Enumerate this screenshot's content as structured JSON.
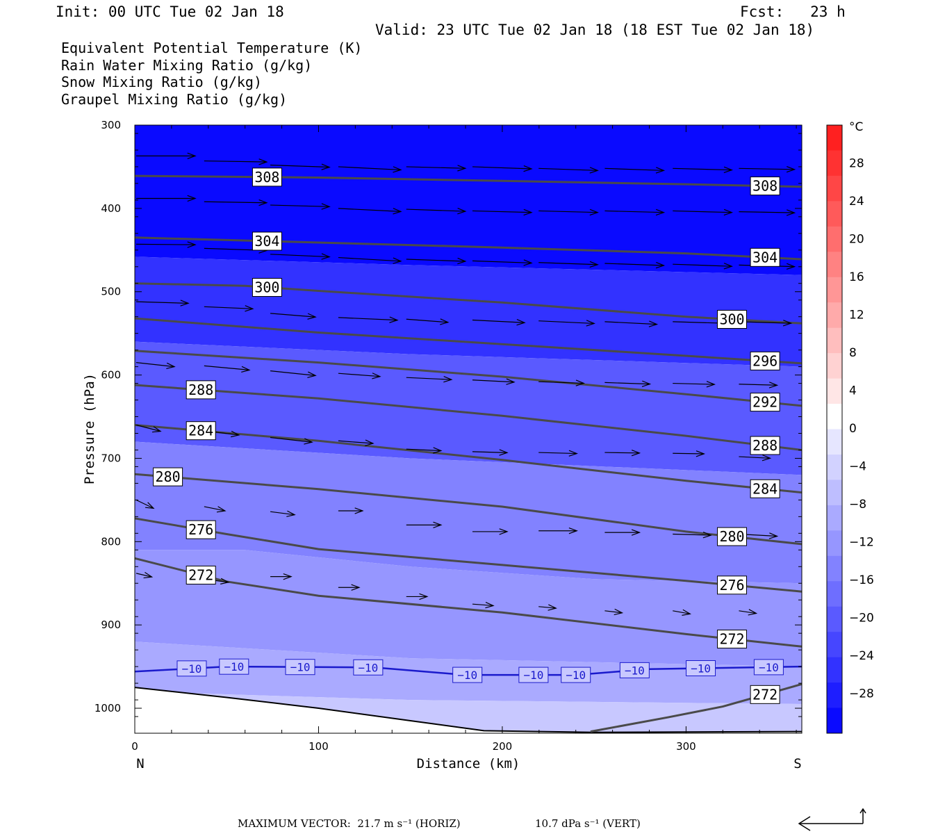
{
  "header": {
    "init": "Init: 00 UTC Tue 02 Jan 18",
    "fcst": "Fcst:   23 h",
    "valid": "Valid: 23 UTC Tue 02 Jan 18 (18 EST Tue 02 Jan 18)"
  },
  "legend": [
    {
      "text": "Equivalent Potential Temperature (K)",
      "color": "#4a4a4a"
    },
    {
      "text": "Rain Water Mixing Ratio (g/kg)",
      "color": "#0a7a0a"
    },
    {
      "text": "Snow Mixing Ratio (g/kg)",
      "color": "#f08c5a"
    },
    {
      "text": "Graupel Mixing Ratio (g/kg)",
      "color": "#e070e0"
    }
  ],
  "footer": {
    "max_vector": "MAXIMUM VECTOR:  21.7 m s⁻¹ (HORIZ)",
    "vert": "10.7 dPa s⁻¹ (VERT)"
  },
  "chart_data": {
    "type": "contour-cross-section",
    "xlabel": "Distance (km)",
    "ylabel": "Pressure (hPa)",
    "x_left_label": "N",
    "x_right_label": "S",
    "xlim": [
      0,
      363
    ],
    "ylim": [
      1030,
      300
    ],
    "x_ticks": [
      0,
      100,
      200,
      300
    ],
    "y_ticks": [
      300,
      400,
      500,
      600,
      700,
      800,
      900,
      1000
    ],
    "colorbar": {
      "unit": "°C",
      "labels": [
        "28",
        "24",
        "20",
        "16",
        "12",
        "8",
        "4",
        "0",
        "−4",
        "−8",
        "−12",
        "−16",
        "−20",
        "−24",
        "−28"
      ],
      "colors": [
        "#ff2020",
        "#ff3232",
        "#ff4646",
        "#ff5a5a",
        "#ff6e6e",
        "#ff8282",
        "#ff9696",
        "#ffaaaa",
        "#ffbebe",
        "#ffd2d2",
        "#ffe6e6",
        "#ffffff",
        "#e6e6ff",
        "#d2d2ff",
        "#bebeff",
        "#aaaaff",
        "#9696ff",
        "#8282ff",
        "#6e6eff",
        "#5a5aff",
        "#4646ff",
        "#3232ff",
        "#1e1eff",
        "#0a0aff"
      ]
    },
    "theta_e_contours": [
      {
        "value": 308,
        "labels": [
          "308",
          "308"
        ],
        "points": [
          [
            0,
            361
          ],
          [
            100,
            363
          ],
          [
            200,
            367
          ],
          [
            300,
            371
          ],
          [
            363,
            374
          ]
        ]
      },
      {
        "value": 304,
        "labels": [
          "304",
          "304"
        ],
        "points": [
          [
            0,
            435
          ],
          [
            100,
            441
          ],
          [
            200,
            447
          ],
          [
            300,
            454
          ],
          [
            363,
            461
          ]
        ]
      },
      {
        "value": 300,
        "labels": [
          "300",
          "300"
        ],
        "points": [
          [
            0,
            490
          ],
          [
            60,
            493
          ],
          [
            100,
            499
          ],
          [
            200,
            513
          ],
          [
            300,
            530
          ],
          [
            363,
            538
          ]
        ]
      },
      {
        "value": 296,
        "labels": [
          "296"
        ],
        "points": [
          [
            0,
            532
          ],
          [
            100,
            549
          ],
          [
            200,
            563
          ],
          [
            300,
            577
          ],
          [
            363,
            586
          ]
        ]
      },
      {
        "value": 292,
        "labels": [
          "292"
        ],
        "points": [
          [
            0,
            571
          ],
          [
            100,
            585
          ],
          [
            200,
            602
          ],
          [
            300,
            623
          ],
          [
            363,
            637
          ]
        ]
      },
      {
        "value": 288,
        "labels": [
          "288",
          "288"
        ],
        "points": [
          [
            0,
            612
          ],
          [
            100,
            628
          ],
          [
            200,
            649
          ],
          [
            300,
            673
          ],
          [
            363,
            690
          ]
        ]
      },
      {
        "value": 284,
        "labels": [
          "284",
          "284"
        ],
        "points": [
          [
            0,
            660
          ],
          [
            100,
            679
          ],
          [
            200,
            702
          ],
          [
            300,
            727
          ],
          [
            363,
            741
          ]
        ]
      },
      {
        "value": 280,
        "labels": [
          "280",
          "280"
        ],
        "points": [
          [
            0,
            719
          ],
          [
            100,
            737
          ],
          [
            200,
            758
          ],
          [
            300,
            788
          ],
          [
            363,
            803
          ]
        ]
      },
      {
        "value": 276,
        "labels": [
          "276",
          "276"
        ],
        "points": [
          [
            0,
            772
          ],
          [
            50,
            791
          ],
          [
            100,
            809
          ],
          [
            200,
            828
          ],
          [
            300,
            847
          ],
          [
            363,
            860
          ]
        ]
      },
      {
        "value": 272,
        "labels": [
          "272",
          "272"
        ],
        "points": [
          [
            0,
            820
          ],
          [
            50,
            848
          ],
          [
            100,
            865
          ],
          [
            200,
            885
          ],
          [
            300,
            911
          ],
          [
            363,
            926
          ]
        ]
      },
      {
        "value": 272,
        "labels": [
          "272"
        ],
        "points": [
          [
            248,
            1028
          ],
          [
            290,
            1011
          ],
          [
            320,
            998
          ],
          [
            363,
            971
          ]
        ]
      }
    ],
    "temperature_contour": {
      "value": -10,
      "label": "−10",
      "points": [
        [
          0,
          956
        ],
        [
          50,
          950
        ],
        [
          130,
          951
        ],
        [
          180,
          960
        ],
        [
          240,
          960
        ],
        [
          280,
          953
        ],
        [
          363,
          950
        ]
      ]
    },
    "shading_bands": [
      {
        "label": "−28",
        "top": [
          [
            0,
            300
          ],
          [
            363,
            300
          ]
        ],
        "bottom": [
          [
            0,
            458
          ],
          [
            150,
            468
          ],
          [
            363,
            480
          ]
        ]
      },
      {
        "label": "−24",
        "top": [
          [
            0,
            458
          ],
          [
            150,
            468
          ],
          [
            363,
            480
          ]
        ],
        "bottom": [
          [
            0,
            560
          ],
          [
            150,
            575
          ],
          [
            363,
            590
          ]
        ]
      },
      {
        "label": "−20",
        "top": [
          [
            0,
            560
          ],
          [
            150,
            575
          ],
          [
            363,
            590
          ]
        ],
        "bottom": [
          [
            0,
            680
          ],
          [
            150,
            700
          ],
          [
            363,
            720
          ]
        ]
      },
      {
        "label": "−16",
        "top": [
          [
            0,
            680
          ],
          [
            150,
            700
          ],
          [
            363,
            720
          ]
        ],
        "bottom": [
          [
            0,
            810
          ],
          [
            60,
            810
          ],
          [
            150,
            830
          ],
          [
            250,
            845
          ],
          [
            363,
            850
          ]
        ]
      },
      {
        "label": "−12",
        "top": [
          [
            0,
            810
          ],
          [
            60,
            810
          ],
          [
            150,
            830
          ],
          [
            250,
            845
          ],
          [
            363,
            850
          ]
        ],
        "bottom": [
          [
            0,
            920
          ],
          [
            150,
            940
          ],
          [
            363,
            950
          ]
        ]
      },
      {
        "label": "−8",
        "top": [
          [
            0,
            920
          ],
          [
            150,
            940
          ],
          [
            363,
            950
          ]
        ],
        "bottom": [
          [
            0,
            980
          ],
          [
            150,
            990
          ],
          [
            363,
            995
          ]
        ]
      },
      {
        "label": "−4",
        "top": [
          [
            0,
            980
          ],
          [
            150,
            990
          ],
          [
            363,
            995
          ]
        ],
        "bottom": [
          [
            0,
            1030
          ],
          [
            363,
            1030
          ]
        ]
      }
    ],
    "terrain": [
      [
        0,
        975
      ],
      [
        50,
        987
      ],
      [
        100,
        1000
      ],
      [
        150,
        1015
      ],
      [
        190,
        1027
      ],
      [
        250,
        1029
      ],
      [
        363,
        1028
      ]
    ],
    "wind_vectors": [
      [
        0,
        337,
        34,
        0
      ],
      [
        37,
        343,
        36,
        -2
      ],
      [
        73,
        348,
        34,
        -4
      ],
      [
        110,
        350,
        36,
        -6
      ],
      [
        147,
        350,
        34,
        -3
      ],
      [
        183,
        350,
        34,
        -4
      ],
      [
        219,
        352,
        34,
        -4
      ],
      [
        255,
        352,
        34,
        -4
      ],
      [
        292,
        352,
        34,
        -3
      ],
      [
        328,
        352,
        32,
        -2
      ],
      [
        0,
        388,
        34,
        0
      ],
      [
        37,
        392,
        36,
        -2
      ],
      [
        73,
        396,
        34,
        -3
      ],
      [
        110,
        400,
        36,
        -6
      ],
      [
        147,
        401,
        34,
        -4
      ],
      [
        183,
        403,
        34,
        -3
      ],
      [
        219,
        403,
        34,
        -3
      ],
      [
        255,
        403,
        34,
        -3
      ],
      [
        292,
        403,
        34,
        -3
      ],
      [
        328,
        404,
        32,
        -2
      ],
      [
        0,
        443,
        34,
        -1
      ],
      [
        37,
        448,
        36,
        -4
      ],
      [
        73,
        455,
        34,
        -5
      ],
      [
        110,
        459,
        36,
        -7
      ],
      [
        147,
        461,
        34,
        -4
      ],
      [
        183,
        463,
        34,
        -4
      ],
      [
        219,
        465,
        34,
        -4
      ],
      [
        255,
        466,
        34,
        -4
      ],
      [
        292,
        467,
        34,
        -4
      ],
      [
        328,
        468,
        32,
        -3
      ],
      [
        0,
        512,
        30,
        -3
      ],
      [
        37,
        518,
        28,
        -4
      ],
      [
        73,
        526,
        26,
        -7
      ],
      [
        110,
        531,
        34,
        -5
      ],
      [
        147,
        533,
        24,
        -6
      ],
      [
        183,
        534,
        30,
        -5
      ],
      [
        219,
        535,
        32,
        -5
      ],
      [
        255,
        536,
        30,
        -5
      ],
      [
        292,
        536,
        30,
        -3
      ],
      [
        328,
        536,
        30,
        -3
      ],
      [
        0,
        585,
        22,
        -8
      ],
      [
        37,
        589,
        26,
        -8
      ],
      [
        73,
        595,
        26,
        -9
      ],
      [
        110,
        598,
        24,
        -6
      ],
      [
        147,
        603,
        26,
        -4
      ],
      [
        183,
        606,
        24,
        -4
      ],
      [
        219,
        608,
        26,
        -3
      ],
      [
        255,
        609,
        26,
        -3
      ],
      [
        292,
        610,
        24,
        -2
      ],
      [
        328,
        611,
        22,
        -2
      ],
      [
        0,
        660,
        14,
        -12
      ],
      [
        37,
        667,
        20,
        -8
      ],
      [
        73,
        675,
        24,
        -9
      ],
      [
        110,
        679,
        20,
        -5
      ],
      [
        147,
        689,
        20,
        -3
      ],
      [
        183,
        692,
        20,
        -2
      ],
      [
        219,
        693,
        22,
        -2
      ],
      [
        255,
        693,
        20,
        -1
      ],
      [
        292,
        694,
        18,
        -1
      ],
      [
        328,
        698,
        18,
        -3
      ],
      [
        0,
        750,
        10,
        -16
      ],
      [
        37,
        758,
        12,
        -8
      ],
      [
        73,
        764,
        14,
        -6
      ],
      [
        110,
        763,
        14,
        0
      ],
      [
        147,
        780,
        20,
        0
      ],
      [
        183,
        788,
        20,
        0
      ],
      [
        219,
        787,
        22,
        0
      ],
      [
        255,
        789,
        20,
        0
      ],
      [
        292,
        791,
        22,
        -2
      ],
      [
        328,
        791,
        22,
        -4
      ],
      [
        0,
        838,
        9,
        -7
      ],
      [
        37,
        845,
        14,
        -6
      ],
      [
        73,
        842,
        12,
        0
      ],
      [
        110,
        855,
        12,
        0
      ],
      [
        147,
        866,
        12,
        0
      ],
      [
        183,
        875,
        12,
        -3
      ],
      [
        219,
        878,
        10,
        -3
      ],
      [
        255,
        883,
        10,
        -4
      ],
      [
        292,
        883,
        10,
        -6
      ],
      [
        328,
        883,
        10,
        -5
      ]
    ]
  }
}
